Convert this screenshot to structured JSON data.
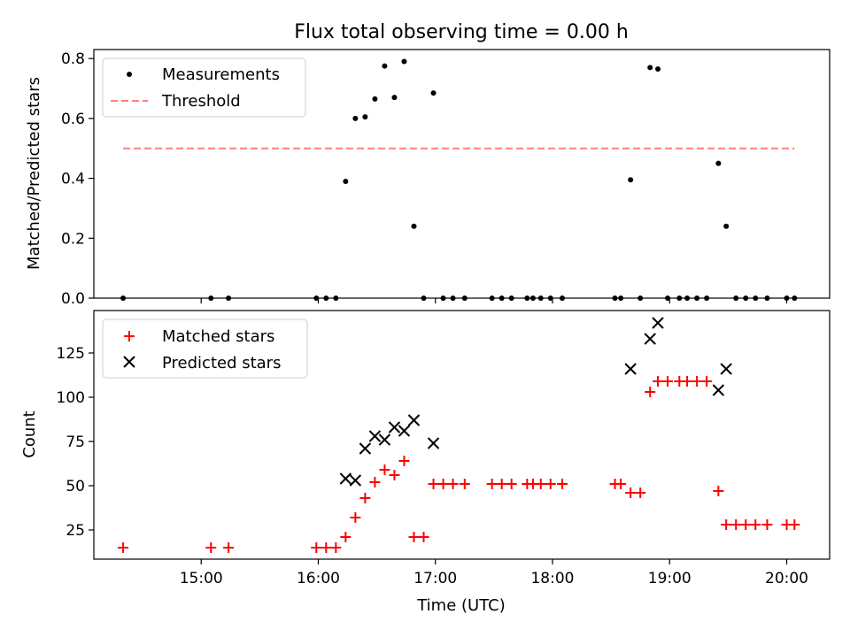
{
  "chart_data": [
    {
      "type": "scatter",
      "title": "Flux total observing time = 0.00 h",
      "ylabel": "Matched/Predicted stars",
      "xlim": [
        "14:05",
        "20:22"
      ],
      "ylim": [
        0,
        0.83
      ],
      "yticks": [
        0.0,
        0.2,
        0.4,
        0.6,
        0.8
      ],
      "ytick_labels": [
        "0.0",
        "0.2",
        "0.4",
        "0.6",
        "0.8"
      ],
      "xtick_values": [
        "15:00",
        "16:00",
        "17:00",
        "18:00",
        "19:00",
        "20:00"
      ],
      "xtick_labels": [
        "",
        "",
        "",
        "",
        "",
        ""
      ],
      "legend_position": "top-left",
      "legend": [
        {
          "label": "Measurements",
          "color": "#000000",
          "marker": "dot"
        },
        {
          "label": "Threshold",
          "color": "#ff7f7f",
          "marker": "dashed-line"
        }
      ],
      "series": [
        {
          "name": "Measurements",
          "color": "#000000",
          "points": [
            [
              "14:20",
              0.0
            ],
            [
              "15:05",
              0.0
            ],
            [
              "15:14",
              0.0
            ],
            [
              "15:59",
              0.0
            ],
            [
              "16:04",
              0.0
            ],
            [
              "16:09",
              0.0
            ],
            [
              "16:14",
              0.39
            ],
            [
              "16:19",
              0.6
            ],
            [
              "16:24",
              0.605
            ],
            [
              "16:29",
              0.665
            ],
            [
              "16:34",
              0.775
            ],
            [
              "16:39",
              0.67
            ],
            [
              "16:44",
              0.79
            ],
            [
              "16:49",
              0.24
            ],
            [
              "16:54",
              0.0
            ],
            [
              "16:59",
              0.685
            ],
            [
              "17:04",
              0.0
            ],
            [
              "17:09",
              0.0
            ],
            [
              "17:15",
              0.0
            ],
            [
              "17:29",
              0.0
            ],
            [
              "17:34",
              0.0
            ],
            [
              "17:39",
              0.0
            ],
            [
              "17:47",
              0.0
            ],
            [
              "17:50",
              0.0
            ],
            [
              "17:54",
              0.0
            ],
            [
              "17:59",
              0.0
            ],
            [
              "18:05",
              0.0
            ],
            [
              "18:32",
              0.0
            ],
            [
              "18:35",
              0.0
            ],
            [
              "18:40",
              0.395
            ],
            [
              "18:45",
              0.0
            ],
            [
              "18:50",
              0.77
            ],
            [
              "18:54",
              0.765
            ],
            [
              "18:59",
              0.0
            ],
            [
              "19:05",
              0.0
            ],
            [
              "19:09",
              0.0
            ],
            [
              "19:14",
              0.0
            ],
            [
              "19:19",
              0.0
            ],
            [
              "19:25",
              0.45
            ],
            [
              "19:29",
              0.24
            ],
            [
              "19:34",
              0.0
            ],
            [
              "19:39",
              0.0
            ],
            [
              "19:44",
              0.0
            ],
            [
              "19:50",
              0.0
            ],
            [
              "20:00",
              0.0
            ],
            [
              "20:04",
              0.0
            ]
          ]
        },
        {
          "name": "Threshold",
          "color": "#ff7f7f",
          "points": [
            [
              "14:20",
              0.5
            ],
            [
              "20:04",
              0.5
            ]
          ]
        }
      ]
    },
    {
      "type": "scatter",
      "title": "",
      "xlabel": "Time (UTC)",
      "ylabel": "Count",
      "xlim": [
        "14:05",
        "20:22"
      ],
      "ylim": [
        8.5,
        149
      ],
      "yticks": [
        25,
        50,
        75,
        100,
        125
      ],
      "ytick_labels": [
        "25",
        "50",
        "75",
        "100",
        "125"
      ],
      "xtick_values": [
        "15:00",
        "16:00",
        "17:00",
        "18:00",
        "19:00",
        "20:00"
      ],
      "xtick_labels": [
        "15:00",
        "16:00",
        "17:00",
        "18:00",
        "19:00",
        "20:00"
      ],
      "legend_position": "top-left",
      "legend": [
        {
          "label": "Matched stars",
          "color": "#ff0000",
          "marker": "plus"
        },
        {
          "label": "Predicted stars",
          "color": "#000000",
          "marker": "x"
        }
      ],
      "series": [
        {
          "name": "Matched stars",
          "color": "#ff0000",
          "points": [
            [
              "14:20",
              15
            ],
            [
              "15:05",
              15
            ],
            [
              "15:14",
              15
            ],
            [
              "15:59",
              15
            ],
            [
              "16:04",
              15
            ],
            [
              "16:09",
              15
            ],
            [
              "16:14",
              21
            ],
            [
              "16:19",
              32
            ],
            [
              "16:24",
              43
            ],
            [
              "16:29",
              52
            ],
            [
              "16:34",
              59
            ],
            [
              "16:39",
              56
            ],
            [
              "16:44",
              64
            ],
            [
              "16:49",
              21
            ],
            [
              "16:54",
              21
            ],
            [
              "16:59",
              51
            ],
            [
              "17:04",
              51
            ],
            [
              "17:09",
              51
            ],
            [
              "17:15",
              51
            ],
            [
              "17:29",
              51
            ],
            [
              "17:34",
              51
            ],
            [
              "17:39",
              51
            ],
            [
              "17:47",
              51
            ],
            [
              "17:50",
              51
            ],
            [
              "17:54",
              51
            ],
            [
              "17:59",
              51
            ],
            [
              "18:05",
              51
            ],
            [
              "18:32",
              51
            ],
            [
              "18:35",
              51
            ],
            [
              "18:40",
              46
            ],
            [
              "18:45",
              46
            ],
            [
              "18:50",
              103
            ],
            [
              "18:54",
              109
            ],
            [
              "18:59",
              109
            ],
            [
              "19:05",
              109
            ],
            [
              "19:09",
              109
            ],
            [
              "19:14",
              109
            ],
            [
              "19:19",
              109
            ],
            [
              "19:25",
              47
            ],
            [
              "19:29",
              28
            ],
            [
              "19:34",
              28
            ],
            [
              "19:39",
              28
            ],
            [
              "19:44",
              28
            ],
            [
              "19:50",
              28
            ],
            [
              "20:00",
              28
            ],
            [
              "20:04",
              28
            ]
          ]
        },
        {
          "name": "Predicted stars",
          "color": "#000000",
          "points": [
            [
              "16:14",
              54
            ],
            [
              "16:19",
              53
            ],
            [
              "16:24",
              71
            ],
            [
              "16:29",
              78
            ],
            [
              "16:34",
              76
            ],
            [
              "16:39",
              83
            ],
            [
              "16:44",
              81
            ],
            [
              "16:49",
              87
            ],
            [
              "16:59",
              74
            ],
            [
              "18:40",
              116
            ],
            [
              "18:50",
              133
            ],
            [
              "18:54",
              142
            ],
            [
              "19:25",
              104
            ],
            [
              "19:29",
              116
            ]
          ]
        }
      ]
    }
  ]
}
